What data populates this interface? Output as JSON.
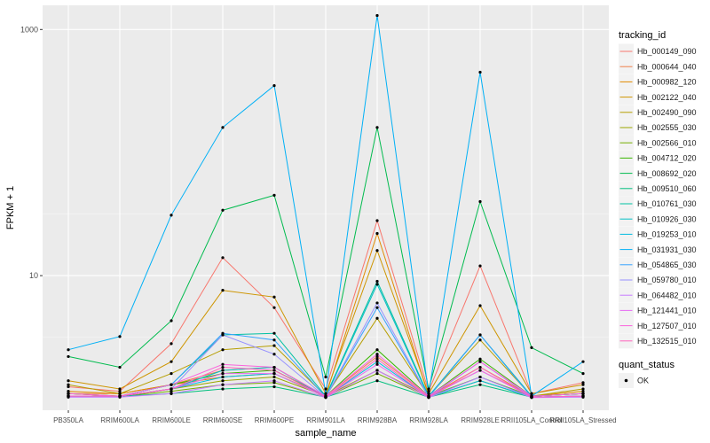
{
  "chart_data": {
    "type": "line",
    "xlabel": "sample_name",
    "ylabel": "FPKM + 1",
    "y_scale": "log10",
    "ylim": [
      1,
      1400
    ],
    "y_ticks": [
      10,
      1000
    ],
    "y_tick_labels": [
      "10",
      "1000"
    ],
    "grid": true,
    "legend_position": "right",
    "categories": [
      "PB350LA",
      "RRIM600LA",
      "RRIM600LE",
      "RRIM600SE",
      "RRIM600PE",
      "RRIM901LA",
      "RRIM928BA",
      "RRIM928LA",
      "RRIM928LE",
      "RRII105LA_Control",
      "RRII105LA_Stressed"
    ],
    "legend_title": "tracking_id",
    "quant_status_title": "quant_status",
    "quant_status_label": "OK",
    "series": [
      {
        "name": "Hb_000149_090",
        "color": "#F8766D",
        "values": [
          1.25,
          1.15,
          2.8,
          14.0,
          5.5,
          1.2,
          28.0,
          1.15,
          12.0,
          1.1,
          1.35
        ]
      },
      {
        "name": "Hb_000644_040",
        "color": "#EF7F49",
        "values": [
          1.1,
          1.1,
          1.3,
          1.7,
          1.8,
          1.05,
          2.2,
          1.05,
          1.7,
          1.05,
          1.1
        ]
      },
      {
        "name": "Hb_000982_120",
        "color": "#E18A00",
        "values": [
          1.15,
          1.1,
          1.3,
          1.5,
          1.6,
          1.05,
          22.0,
          1.05,
          1.8,
          1.05,
          1.15
        ]
      },
      {
        "name": "Hb_002122_040",
        "color": "#CE9500",
        "values": [
          1.4,
          1.2,
          2.0,
          7.6,
          6.7,
          1.1,
          16.0,
          1.1,
          5.7,
          1.1,
          1.3
        ]
      },
      {
        "name": "Hb_002490_090",
        "color": "#B69E00",
        "values": [
          1.3,
          1.1,
          1.6,
          2.5,
          2.7,
          1.05,
          4.5,
          1.05,
          3.0,
          1.05,
          1.2
        ]
      },
      {
        "name": "Hb_002555_030",
        "color": "#9AA600",
        "values": [
          1.1,
          1.05,
          1.2,
          1.4,
          1.5,
          1.05,
          1.7,
          1.05,
          1.5,
          1.05,
          1.1
        ]
      },
      {
        "name": "Hb_002566_010",
        "color": "#75AD00",
        "values": [
          1.05,
          1.05,
          1.15,
          1.3,
          1.35,
          1.03,
          1.6,
          1.03,
          1.4,
          1.03,
          1.05
        ]
      },
      {
        "name": "Hb_004712_020",
        "color": "#39B600",
        "values": [
          1.1,
          1.05,
          1.3,
          1.6,
          1.7,
          1.05,
          2.5,
          1.05,
          2.1,
          1.05,
          1.1
        ]
      },
      {
        "name": "Hb_008692_020",
        "color": "#00BB4E",
        "values": [
          2.2,
          1.8,
          4.3,
          34.0,
          45.0,
          1.5,
          160.0,
          1.2,
          40.0,
          2.6,
          1.6
        ]
      },
      {
        "name": "Hb_009510_060",
        "color": "#00BF7D",
        "values": [
          1.05,
          1.05,
          1.1,
          1.2,
          1.25,
          1.03,
          1.4,
          1.03,
          1.3,
          1.03,
          1.05
        ]
      },
      {
        "name": "Hb_010761_030",
        "color": "#00C1A3",
        "values": [
          1.05,
          1.05,
          1.3,
          3.3,
          3.4,
          1.05,
          9.0,
          1.05,
          3.3,
          1.05,
          1.1
        ]
      },
      {
        "name": "Hb_010926_030",
        "color": "#00BFC4",
        "values": [
          1.05,
          1.05,
          1.2,
          1.7,
          1.8,
          1.03,
          8.5,
          1.03,
          1.5,
          1.03,
          1.05
        ]
      },
      {
        "name": "Hb_019253_010",
        "color": "#00BAE0",
        "values": [
          1.05,
          1.05,
          1.2,
          1.5,
          1.6,
          1.03,
          2.0,
          1.03,
          1.4,
          1.03,
          1.05
        ]
      },
      {
        "name": "Hb_031931_030",
        "color": "#00B0F6",
        "values": [
          2.5,
          3.2,
          31.0,
          160.0,
          350.0,
          1.1,
          1300.0,
          1.1,
          450.0,
          1.05,
          2.0
        ]
      },
      {
        "name": "Hb_054865_030",
        "color": "#35A2FF",
        "values": [
          1.05,
          1.05,
          1.3,
          3.4,
          3.0,
          1.03,
          5.5,
          1.03,
          3.3,
          1.03,
          1.05
        ]
      },
      {
        "name": "Hb_059780_010",
        "color": "#9590FF",
        "values": [
          1.05,
          1.05,
          1.2,
          3.3,
          2.3,
          1.03,
          6.0,
          1.03,
          2.0,
          1.03,
          1.05
        ]
      },
      {
        "name": "Hb_064482_010",
        "color": "#C77CFF",
        "values": [
          1.03,
          1.03,
          1.1,
          1.3,
          1.4,
          1.02,
          1.7,
          1.02,
          1.5,
          1.02,
          1.03
        ]
      },
      {
        "name": "Hb_121441_010",
        "color": "#E76BF3",
        "values": [
          1.05,
          1.05,
          1.2,
          1.6,
          1.6,
          1.03,
          1.9,
          1.03,
          1.7,
          1.03,
          1.05
        ]
      },
      {
        "name": "Hb_127507_010",
        "color": "#FA62DB",
        "values": [
          1.1,
          1.05,
          1.3,
          1.9,
          1.8,
          1.05,
          2.3,
          1.05,
          2.0,
          1.05,
          1.1
        ]
      },
      {
        "name": "Hb_132515_010",
        "color": "#FF62BC",
        "values": [
          1.05,
          1.05,
          1.2,
          1.8,
          1.7,
          1.03,
          2.1,
          1.03,
          1.8,
          1.03,
          1.05
        ]
      }
    ]
  }
}
